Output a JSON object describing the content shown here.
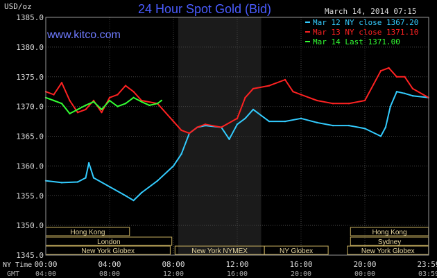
{
  "chart_data": {
    "type": "line",
    "title": "24 Hour Spot Gold (Bid)",
    "watermark": "www.kitco.com",
    "date_label": "March 14, 2014 07:15",
    "ylabel": "USD/oz",
    "ylim": [
      1345,
      1385
    ],
    "yticks": [
      "1385.0",
      "1380.0",
      "1375.0",
      "1370.0",
      "1365.0",
      "1360.0",
      "1355.0",
      "1350.0",
      "1345.0"
    ],
    "x_ny_label": "NY Time",
    "x_gmt_label": "GMT",
    "x_ny_ticks": [
      "00:00",
      "04:00",
      "08:00",
      "12:00",
      "16:00",
      "20:00",
      "23:59"
    ],
    "x_gmt_ticks": [
      "04:00",
      "08:00",
      "12:00",
      "16:00",
      "20:00",
      "00:00",
      "03:59"
    ],
    "xlim_hours": [
      0,
      24
    ],
    "grid": true,
    "shaded_session_hours": [
      8.3,
      13.5
    ],
    "legend_position": "top-right",
    "series": [
      {
        "name": "Mar 12 NY close 1367.20",
        "color": "#33ccff",
        "x": [
          0,
          1,
          2,
          2.5,
          2.7,
          3,
          4,
          5,
          5.5,
          6,
          7,
          8,
          8.5,
          9,
          9.5,
          10,
          11,
          11.5,
          12,
          12.5,
          13,
          14,
          15,
          16,
          17,
          18,
          19,
          20,
          21,
          21.3,
          21.6,
          22,
          22.5,
          23,
          23.99
        ],
        "values": [
          1357.5,
          1357.2,
          1357.3,
          1358,
          1360.5,
          1358,
          1356.5,
          1355,
          1354.2,
          1355.5,
          1357.5,
          1360,
          1362,
          1365.5,
          1366.5,
          1366.8,
          1366.5,
          1364.5,
          1367,
          1368,
          1369.5,
          1367.5,
          1367.5,
          1368,
          1367.3,
          1366.8,
          1366.8,
          1366.3,
          1365,
          1366.5,
          1370,
          1372.5,
          1372.2,
          1371.8,
          1371.5
        ]
      },
      {
        "name": "Mar 13 NY close 1371.10",
        "color": "#ff2222",
        "x": [
          0,
          0.5,
          1,
          1.5,
          2,
          2.5,
          3,
          3.5,
          4,
          4.5,
          5,
          5.5,
          6,
          7,
          8,
          8.5,
          9,
          9.5,
          10,
          11,
          12,
          12.5,
          13,
          14,
          15,
          15.5,
          16,
          17,
          18,
          19,
          20,
          21,
          21.5,
          22,
          22.5,
          23,
          23.99
        ],
        "values": [
          1372.5,
          1372,
          1374,
          1371,
          1369,
          1369.5,
          1371,
          1369,
          1371.5,
          1372,
          1373.5,
          1372.5,
          1371,
          1370.5,
          1367.5,
          1366,
          1365.5,
          1366.5,
          1367,
          1366.5,
          1368,
          1371.5,
          1373,
          1373.5,
          1374.5,
          1372.5,
          1372,
          1371,
          1370.5,
          1370.5,
          1371,
          1376,
          1376.5,
          1375,
          1375,
          1373,
          1371.5
        ]
      },
      {
        "name": "Mar 14 Last 1371.00",
        "color": "#33ff33",
        "x": [
          0,
          0.5,
          1,
          1.5,
          2,
          2.5,
          3,
          3.5,
          4,
          4.5,
          5,
          5.5,
          6,
          6.5,
          7,
          7.25
        ],
        "values": [
          1371.5,
          1371,
          1370.5,
          1368.8,
          1369.5,
          1370.2,
          1370.8,
          1369.5,
          1371,
          1370,
          1370.5,
          1371.5,
          1370.8,
          1370.2,
          1370.5,
          1371
        ]
      }
    ],
    "market_sessions": [
      {
        "label": "Hong Kong",
        "start": 0,
        "end": 5.25,
        "row": 1
      },
      {
        "label": "Hong Kong",
        "start": 19.1,
        "end": 23.99,
        "row": 1
      },
      {
        "label": "London",
        "start": 0,
        "end": 7.9,
        "row": 2
      },
      {
        "label": "Sydney",
        "start": 19.1,
        "end": 23.99,
        "row": 2
      },
      {
        "label": "New York Globex",
        "start": 0,
        "end": 7.8,
        "row": 3
      },
      {
        "label": "New York NYMEX",
        "start": 8.1,
        "end": 13.7,
        "row": 3
      },
      {
        "label": "NY Globex",
        "start": 13.7,
        "end": 17.7,
        "row": 3
      },
      {
        "label": "New York Globex",
        "start": 18.9,
        "end": 23.99,
        "row": 3
      }
    ]
  }
}
